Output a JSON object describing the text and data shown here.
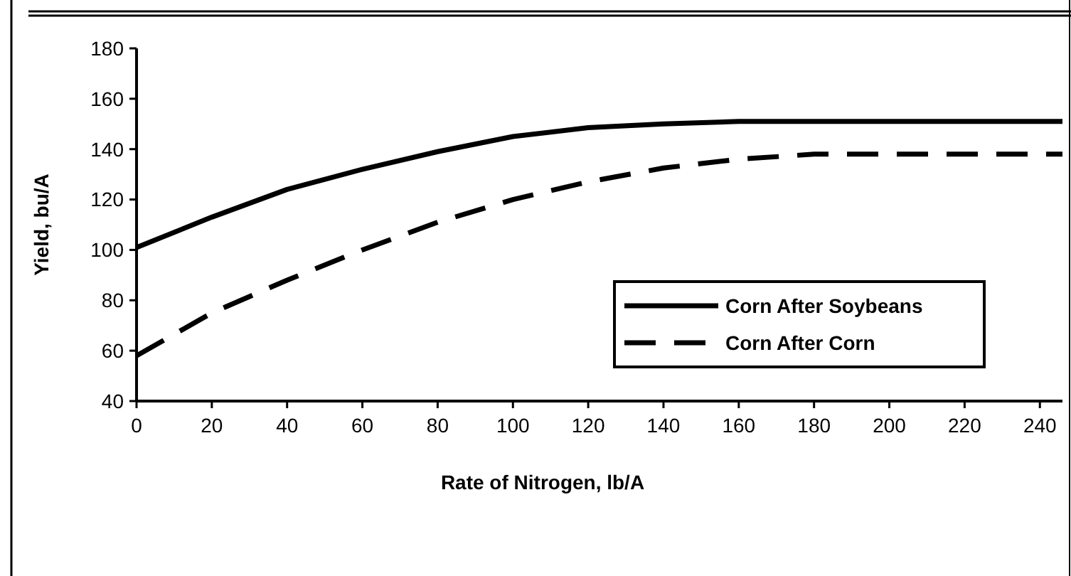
{
  "chart_data": {
    "type": "line",
    "xlabel": "Rate of Nitrogen, lb/A",
    "ylabel": "Yield, bu/A",
    "xlim": [
      0,
      246
    ],
    "xticks": [
      0,
      20,
      40,
      60,
      80,
      100,
      120,
      140,
      160,
      180,
      200,
      220,
      240
    ],
    "ylim": [
      40,
      180
    ],
    "yticks": [
      40,
      60,
      80,
      100,
      120,
      140,
      160,
      180
    ],
    "legend": "right",
    "marker": "none",
    "series": [
      {
        "name": "Corn After Soybeans",
        "color": "#000000",
        "line_style": "solid",
        "x": [
          0,
          20,
          40,
          60,
          80,
          100,
          120,
          140,
          160,
          180,
          200,
          220,
          246
        ],
        "values": [
          101,
          113,
          124,
          132,
          139,
          145,
          148.5,
          150,
          151,
          151,
          151,
          151,
          151
        ]
      },
      {
        "name": "Corn After Corn",
        "color": "#000000",
        "line_style": "dashed",
        "x": [
          0,
          20,
          40,
          60,
          80,
          100,
          120,
          140,
          160,
          180,
          200,
          220,
          246
        ],
        "values": [
          58,
          75,
          88,
          100,
          111,
          120,
          127,
          132.5,
          136,
          138,
          138,
          138,
          138
        ]
      }
    ]
  }
}
